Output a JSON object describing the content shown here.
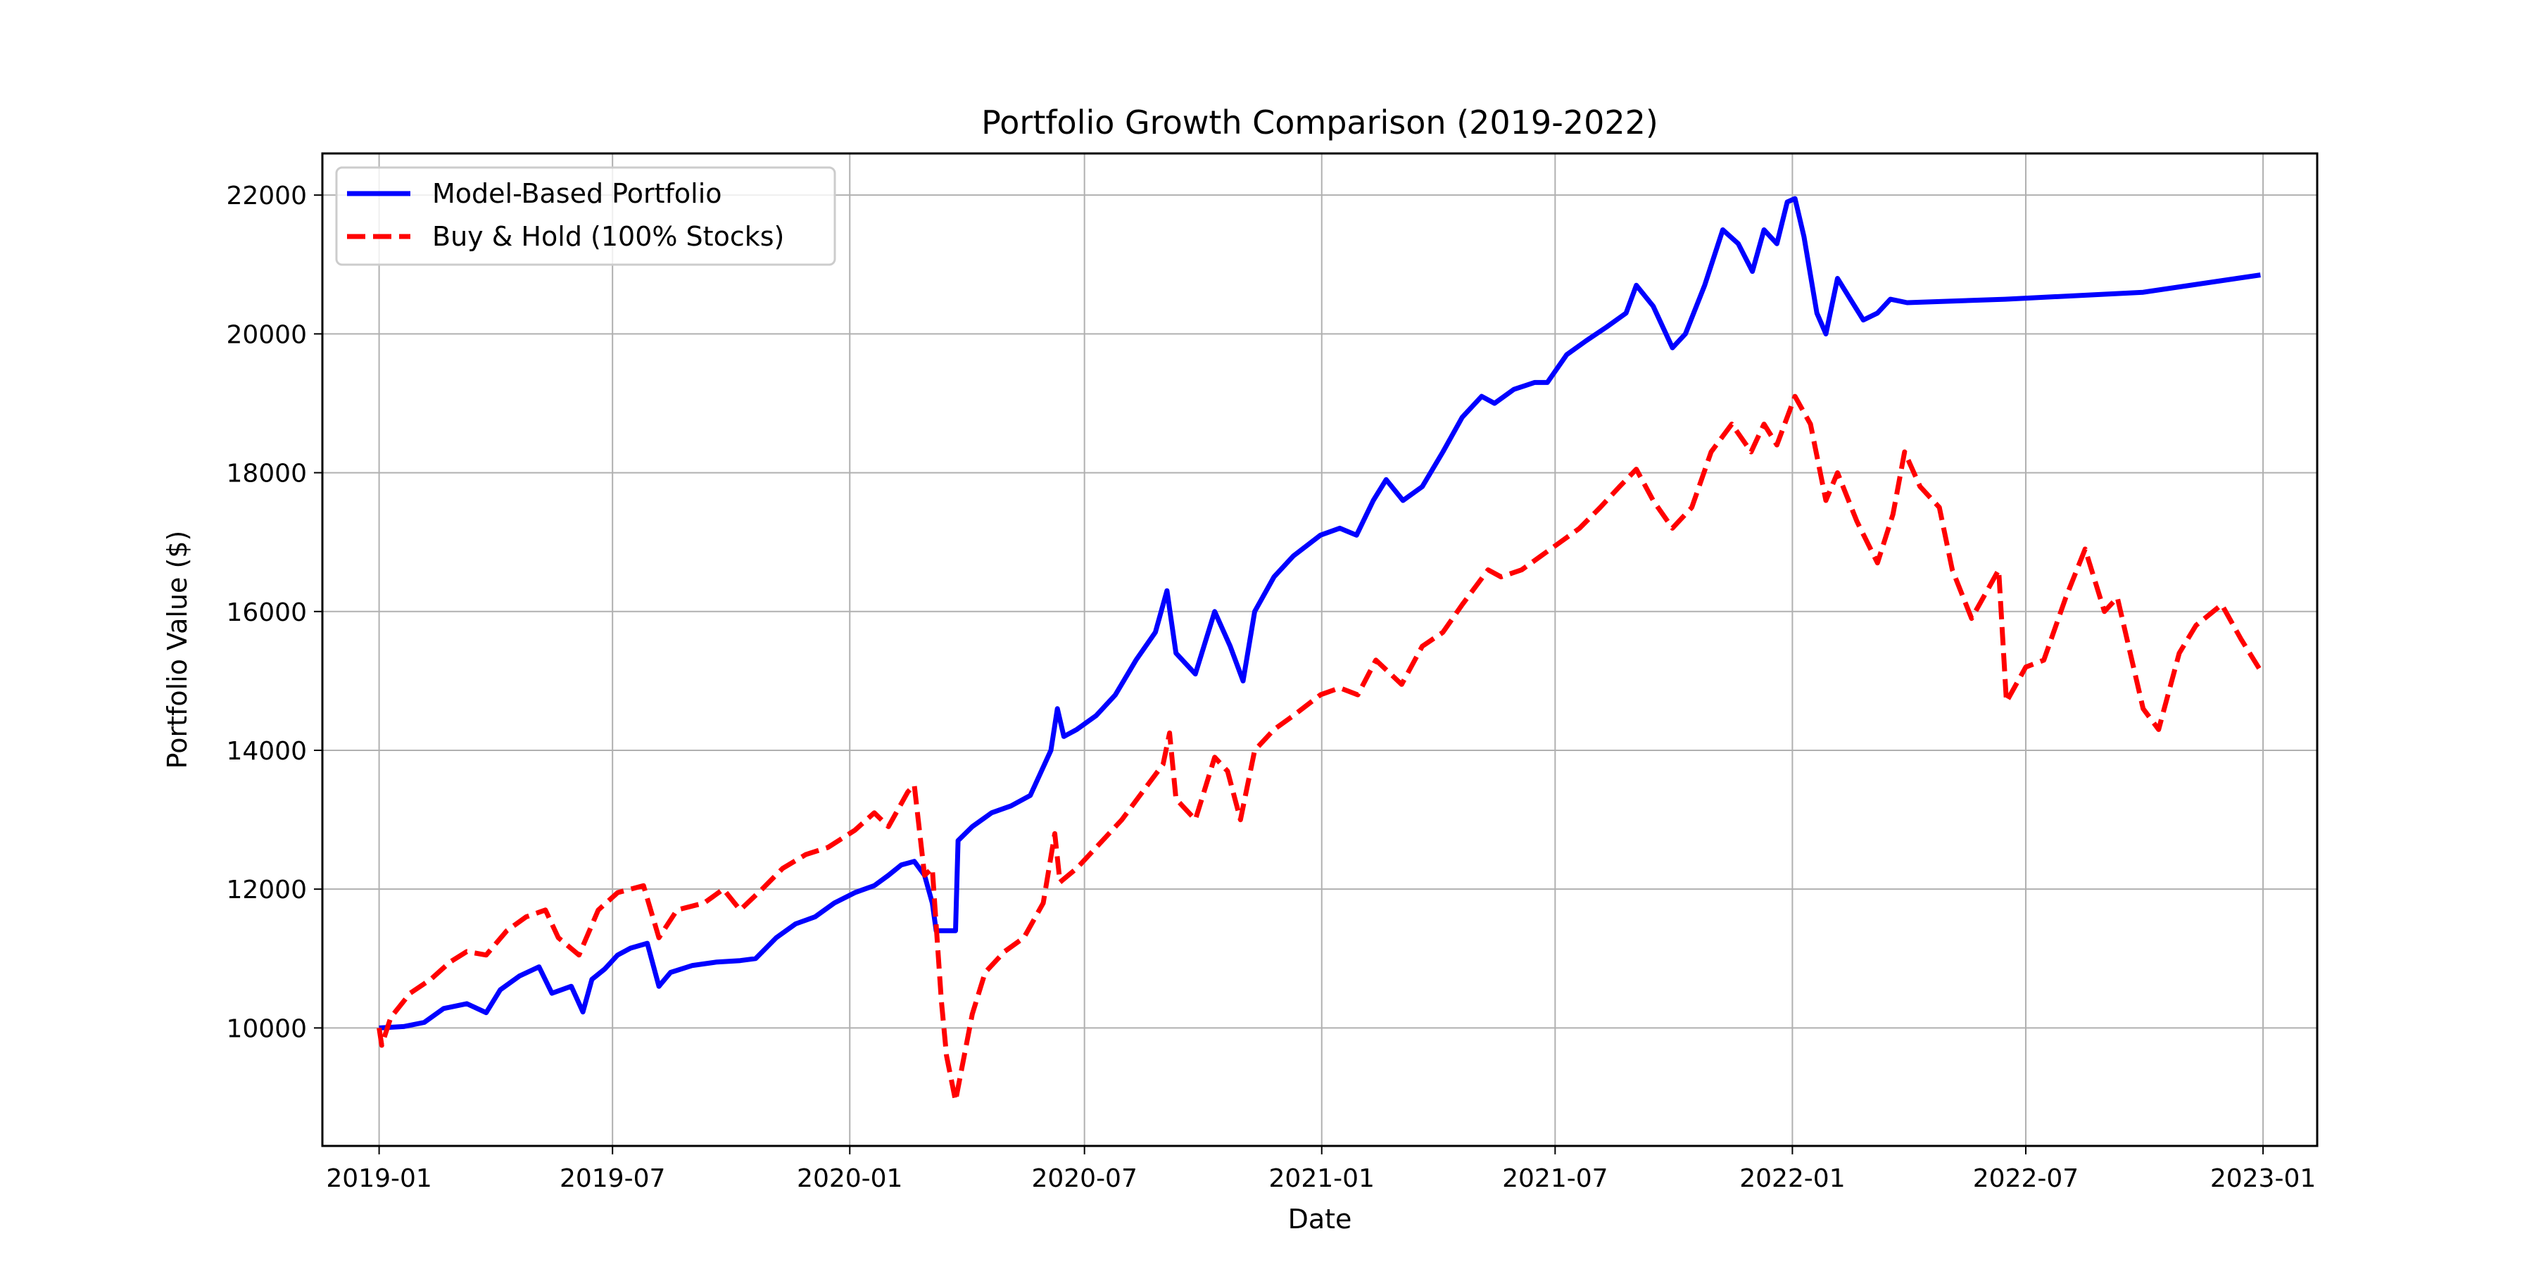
{
  "chart_data": {
    "type": "line",
    "title": "Portfolio Growth Comparison (2019-2022)",
    "xlabel": "Date",
    "ylabel": "Portfolio Value ($)",
    "xlim": [
      "2018-11-18",
      "2023-02-12"
    ],
    "ylim": [
      8300,
      22600
    ],
    "x_ticks": [
      "2019-01",
      "2019-07",
      "2020-01",
      "2020-07",
      "2021-01",
      "2021-07",
      "2022-01",
      "2022-07",
      "2023-01"
    ],
    "y_ticks": [
      10000,
      12000,
      14000,
      16000,
      18000,
      20000,
      22000
    ],
    "grid": true,
    "legend_position": "top-left",
    "series": [
      {
        "name": "Model-Based Portfolio",
        "color": "#0000ff",
        "style": "solid",
        "points": [
          [
            "2019-01-01",
            10000
          ],
          [
            "2019-01-20",
            10020
          ],
          [
            "2019-02-05",
            10080
          ],
          [
            "2019-02-20",
            10280
          ],
          [
            "2019-03-10",
            10350
          ],
          [
            "2019-03-25",
            10220
          ],
          [
            "2019-04-05",
            10550
          ],
          [
            "2019-04-20",
            10750
          ],
          [
            "2019-05-05",
            10880
          ],
          [
            "2019-05-15",
            10500
          ],
          [
            "2019-05-30",
            10600
          ],
          [
            "2019-06-08",
            10230
          ],
          [
            "2019-06-15",
            10700
          ],
          [
            "2019-06-25",
            10850
          ],
          [
            "2019-07-05",
            11050
          ],
          [
            "2019-07-15",
            11150
          ],
          [
            "2019-07-28",
            11220
          ],
          [
            "2019-08-06",
            10600
          ],
          [
            "2019-08-15",
            10800
          ],
          [
            "2019-09-01",
            10900
          ],
          [
            "2019-09-20",
            10950
          ],
          [
            "2019-10-08",
            10970
          ],
          [
            "2019-10-20",
            11000
          ],
          [
            "2019-11-05",
            11300
          ],
          [
            "2019-11-20",
            11500
          ],
          [
            "2019-12-05",
            11600
          ],
          [
            "2019-12-20",
            11800
          ],
          [
            "2020-01-05",
            11950
          ],
          [
            "2020-01-20",
            12050
          ],
          [
            "2020-01-31",
            12200
          ],
          [
            "2020-02-10",
            12350
          ],
          [
            "2020-02-20",
            12400
          ],
          [
            "2020-02-28",
            12200
          ],
          [
            "2020-03-05",
            11800
          ],
          [
            "2020-03-08",
            11400
          ],
          [
            "2020-03-23",
            11400
          ],
          [
            "2020-03-25",
            12700
          ],
          [
            "2020-04-05",
            12900
          ],
          [
            "2020-04-20",
            13100
          ],
          [
            "2020-05-05",
            13200
          ],
          [
            "2020-05-20",
            13350
          ],
          [
            "2020-06-05",
            14000
          ],
          [
            "2020-06-10",
            14600
          ],
          [
            "2020-06-15",
            14200
          ],
          [
            "2020-06-25",
            14300
          ],
          [
            "2020-07-10",
            14500
          ],
          [
            "2020-07-25",
            14800
          ],
          [
            "2020-08-10",
            15300
          ],
          [
            "2020-08-25",
            15700
          ],
          [
            "2020-09-03",
            16300
          ],
          [
            "2020-09-10",
            15400
          ],
          [
            "2020-09-25",
            15100
          ],
          [
            "2020-10-10",
            16000
          ],
          [
            "2020-10-22",
            15500
          ],
          [
            "2020-11-01",
            15000
          ],
          [
            "2020-11-10",
            16000
          ],
          [
            "2020-11-25",
            16500
          ],
          [
            "2020-12-10",
            16800
          ],
          [
            "2020-12-31",
            17100
          ],
          [
            "2021-01-15",
            17200
          ],
          [
            "2021-01-28",
            17100
          ],
          [
            "2021-02-10",
            17600
          ],
          [
            "2021-02-20",
            17900
          ],
          [
            "2021-03-05",
            17600
          ],
          [
            "2021-03-20",
            17800
          ],
          [
            "2021-04-05",
            18300
          ],
          [
            "2021-04-20",
            18800
          ],
          [
            "2021-05-05",
            19100
          ],
          [
            "2021-05-15",
            19000
          ],
          [
            "2021-05-30",
            19200
          ],
          [
            "2021-06-15",
            19300
          ],
          [
            "2021-06-25",
            19300
          ],
          [
            "2021-07-10",
            19700
          ],
          [
            "2021-07-25",
            19900
          ],
          [
            "2021-08-10",
            20100
          ],
          [
            "2021-08-25",
            20300
          ],
          [
            "2021-09-02",
            20700
          ],
          [
            "2021-09-15",
            20400
          ],
          [
            "2021-09-30",
            19800
          ],
          [
            "2021-10-10",
            20000
          ],
          [
            "2021-10-25",
            20700
          ],
          [
            "2021-11-08",
            21500
          ],
          [
            "2021-11-20",
            21300
          ],
          [
            "2021-12-01",
            20900
          ],
          [
            "2021-12-10",
            21500
          ],
          [
            "2021-12-20",
            21300
          ],
          [
            "2021-12-28",
            21900
          ],
          [
            "2022-01-03",
            21950
          ],
          [
            "2022-01-10",
            21400
          ],
          [
            "2022-01-20",
            20300
          ],
          [
            "2022-01-27",
            20000
          ],
          [
            "2022-02-05",
            20800
          ],
          [
            "2022-02-15",
            20500
          ],
          [
            "2022-02-25",
            20200
          ],
          [
            "2022-03-08",
            20300
          ],
          [
            "2022-03-18",
            20500
          ],
          [
            "2022-03-31",
            20450
          ],
          [
            "2022-06-15",
            20500
          ],
          [
            "2022-09-30",
            20600
          ],
          [
            "2022-12-30",
            20850
          ]
        ]
      },
      {
        "name": "Buy & Hold (100% Stocks)",
        "color": "#ff0000",
        "style": "dashed",
        "points": [
          [
            "2019-01-01",
            10000
          ],
          [
            "2019-01-03",
            9750
          ],
          [
            "2019-01-10",
            10150
          ],
          [
            "2019-01-25",
            10500
          ],
          [
            "2019-02-10",
            10700
          ],
          [
            "2019-02-25",
            10950
          ],
          [
            "2019-03-10",
            11100
          ],
          [
            "2019-03-25",
            11050
          ],
          [
            "2019-04-10",
            11400
          ],
          [
            "2019-04-25",
            11600
          ],
          [
            "2019-05-10",
            11700
          ],
          [
            "2019-05-20",
            11300
          ],
          [
            "2019-06-05",
            11050
          ],
          [
            "2019-06-20",
            11700
          ],
          [
            "2019-07-05",
            11950
          ],
          [
            "2019-07-25",
            12050
          ],
          [
            "2019-08-06",
            11300
          ],
          [
            "2019-08-20",
            11700
          ],
          [
            "2019-09-10",
            11800
          ],
          [
            "2019-09-25",
            12000
          ],
          [
            "2019-10-08",
            11700
          ],
          [
            "2019-10-25",
            12000
          ],
          [
            "2019-11-10",
            12300
          ],
          [
            "2019-11-28",
            12500
          ],
          [
            "2019-12-15",
            12600
          ],
          [
            "2020-01-05",
            12850
          ],
          [
            "2020-01-20",
            13100
          ],
          [
            "2020-01-31",
            12900
          ],
          [
            "2020-02-15",
            13400
          ],
          [
            "2020-02-20",
            13500
          ],
          [
            "2020-02-28",
            12200
          ],
          [
            "2020-03-05",
            12300
          ],
          [
            "2020-03-12",
            10400
          ],
          [
            "2020-03-16",
            9600
          ],
          [
            "2020-03-23",
            8950
          ],
          [
            "2020-04-05",
            10200
          ],
          [
            "2020-04-15",
            10800
          ],
          [
            "2020-04-30",
            11100
          ],
          [
            "2020-05-15",
            11300
          ],
          [
            "2020-05-30",
            11800
          ],
          [
            "2020-06-08",
            12800
          ],
          [
            "2020-06-12",
            12100
          ],
          [
            "2020-06-25",
            12300
          ],
          [
            "2020-07-10",
            12600
          ],
          [
            "2020-07-30",
            13000
          ],
          [
            "2020-08-15",
            13400
          ],
          [
            "2020-08-31",
            13800
          ],
          [
            "2020-09-05",
            14250
          ],
          [
            "2020-09-10",
            13300
          ],
          [
            "2020-09-25",
            13000
          ],
          [
            "2020-10-10",
            13900
          ],
          [
            "2020-10-20",
            13700
          ],
          [
            "2020-10-30",
            13000
          ],
          [
            "2020-11-10",
            14000
          ],
          [
            "2020-11-25",
            14300
          ],
          [
            "2020-12-10",
            14500
          ],
          [
            "2020-12-31",
            14800
          ],
          [
            "2021-01-15",
            14900
          ],
          [
            "2021-01-29",
            14800
          ],
          [
            "2021-02-12",
            15300
          ],
          [
            "2021-03-04",
            14950
          ],
          [
            "2021-03-20",
            15500
          ],
          [
            "2021-04-05",
            15700
          ],
          [
            "2021-04-20",
            16100
          ],
          [
            "2021-05-10",
            16600
          ],
          [
            "2021-05-20",
            16500
          ],
          [
            "2021-06-05",
            16600
          ],
          [
            "2021-06-20",
            16800
          ],
          [
            "2021-07-05",
            17000
          ],
          [
            "2021-07-20",
            17200
          ],
          [
            "2021-08-05",
            17500
          ],
          [
            "2021-08-20",
            17800
          ],
          [
            "2021-09-02",
            18050
          ],
          [
            "2021-09-15",
            17600
          ],
          [
            "2021-09-30",
            17200
          ],
          [
            "2021-10-15",
            17500
          ],
          [
            "2021-10-30",
            18300
          ],
          [
            "2021-11-15",
            18700
          ],
          [
            "2021-11-30",
            18300
          ],
          [
            "2021-12-10",
            18700
          ],
          [
            "2021-12-20",
            18400
          ],
          [
            "2022-01-03",
            19100
          ],
          [
            "2022-01-15",
            18700
          ],
          [
            "2022-01-27",
            17600
          ],
          [
            "2022-02-05",
            18000
          ],
          [
            "2022-02-20",
            17300
          ],
          [
            "2022-03-08",
            16700
          ],
          [
            "2022-03-20",
            17400
          ],
          [
            "2022-03-29",
            18300
          ],
          [
            "2022-04-10",
            17800
          ],
          [
            "2022-04-25",
            17500
          ],
          [
            "2022-05-05",
            16600
          ],
          [
            "2022-05-20",
            15900
          ],
          [
            "2022-06-01",
            16300
          ],
          [
            "2022-06-10",
            16600
          ],
          [
            "2022-06-16",
            14700
          ],
          [
            "2022-07-01",
            15200
          ],
          [
            "2022-07-15",
            15300
          ],
          [
            "2022-08-01",
            16200
          ],
          [
            "2022-08-16",
            16900
          ],
          [
            "2022-08-31",
            16000
          ],
          [
            "2022-09-10",
            16200
          ],
          [
            "2022-09-30",
            14600
          ],
          [
            "2022-10-12",
            14300
          ],
          [
            "2022-10-28",
            15400
          ],
          [
            "2022-11-10",
            15800
          ],
          [
            "2022-11-30",
            16100
          ],
          [
            "2022-12-15",
            15600
          ],
          [
            "2022-12-30",
            15150
          ]
        ]
      }
    ]
  }
}
